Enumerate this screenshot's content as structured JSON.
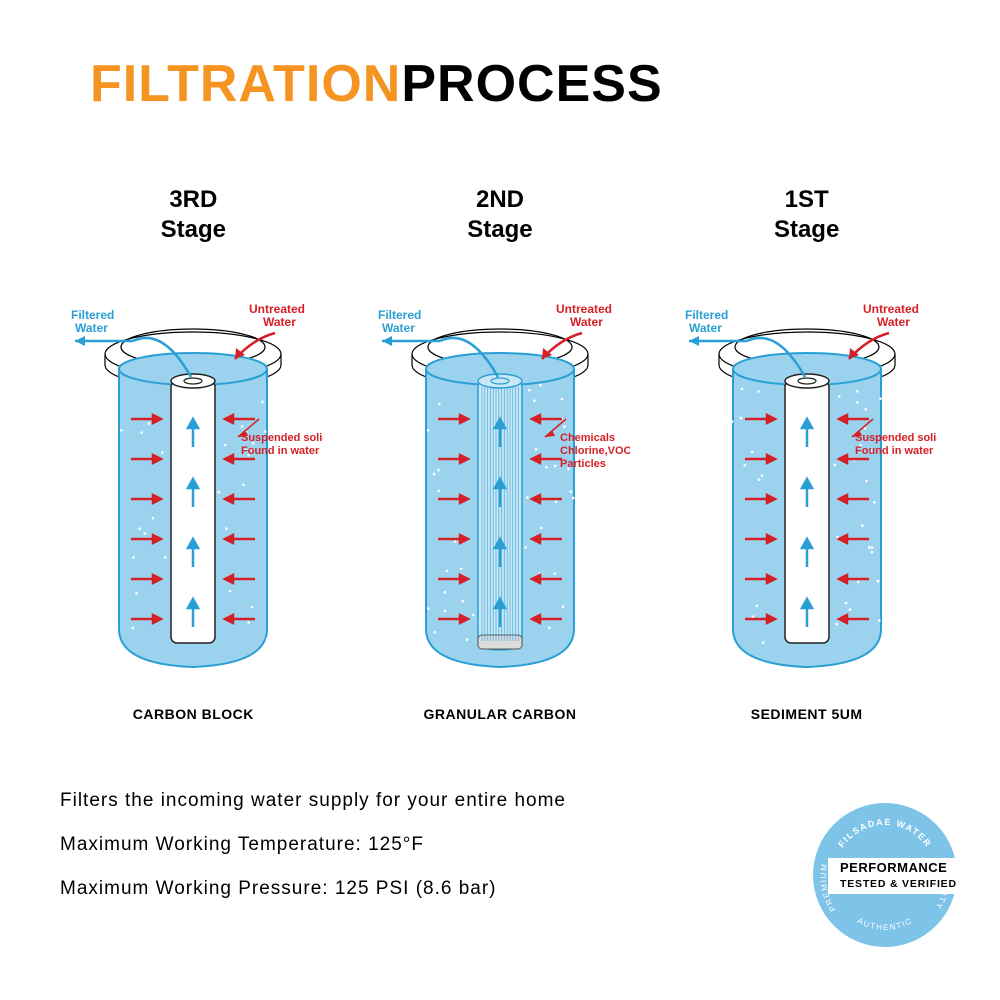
{
  "title": {
    "part1": "FILTRATION",
    "part2": "PROCESS"
  },
  "colors": {
    "orange": "#f59421",
    "black": "#000000",
    "water_fill": "#9bd3ee",
    "water_line": "#2a9fd6",
    "blue_text": "#2a9fd6",
    "red": "#d62027",
    "badge_bg": "#7ec4e8",
    "badge_panel": "#ffffff"
  },
  "stages": [
    {
      "header_line1": "3RD",
      "header_line2": "Stage",
      "name": "CARBON BLOCK",
      "filtered_label": "Filtered\nWater",
      "untreated_label": "Untreated\nWater",
      "side_label_1": "Suspended solids",
      "side_label_2": "Found in water",
      "inner_fill": "#ffffff",
      "inner_stroke": "#222222"
    },
    {
      "header_line1": "2ND",
      "header_line2": "Stage",
      "name": "GRANULAR CARBON",
      "filtered_label": "Filtered\nWater",
      "untreated_label": "Untreated\nWater",
      "side_label_1": "Chemicals",
      "side_label_2": "Chlorine,VOC",
      "side_label_3": "Particles",
      "inner_fill": "#c9e7f5",
      "inner_stroke": "#2a9fd6"
    },
    {
      "header_line1": "1ST",
      "header_line2": "Stage",
      "name": "SEDIMENT 5UM",
      "filtered_label": "Filtered\nWater",
      "untreated_label": "Untreated\nWater",
      "side_label_1": "Suspended solids",
      "side_label_2": "Found in water",
      "inner_fill": "#ffffff",
      "inner_stroke": "#222222"
    }
  ],
  "specs": {
    "line1": "Filters the incoming water supply for your entire home",
    "line2": "Maximum Working Temperature: 125°F",
    "line3": "Maximum Working Pressure: 125 PSI (8.6 bar)"
  },
  "badge": {
    "top_arc": "FILSADAE WATER",
    "left_arc": "PREMIUM",
    "right_arc": "QUALITY",
    "bottom_arc": "AUTHENTIC",
    "main1": "PERFORMANCE",
    "main2": "TESTED & VERIFIED"
  }
}
